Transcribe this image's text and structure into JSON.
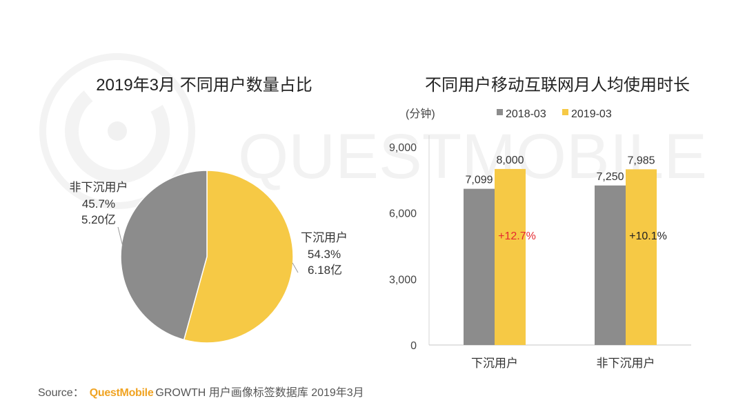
{
  "watermark": "QUESTMOBILE",
  "chart_data": [
    {
      "type": "pie",
      "title": "2019年3月 不同用户数量占比",
      "slices": [
        {
          "label": "下沉用户",
          "value": 54.3,
          "percent": "54.3%",
          "count": "6.18亿",
          "color": "#F6C945"
        },
        {
          "label": "非下沉用户",
          "value": 45.7,
          "percent": "45.7%",
          "count": "5.20亿",
          "color": "#8C8C8C"
        }
      ]
    },
    {
      "type": "bar",
      "title": "不同用户移动互联网月人均使用时长",
      "unit_label": "(分钟)",
      "categories": [
        "下沉用户",
        "非下沉用户"
      ],
      "series": [
        {
          "name": "2018-03",
          "values": [
            7099,
            7250
          ],
          "labels": [
            "7,099",
            "7,250"
          ],
          "color": "#8C8C8C"
        },
        {
          "name": "2019-03",
          "values": [
            8000,
            7985
          ],
          "labels": [
            "8,000",
            "7,985"
          ],
          "color": "#F6C945"
        }
      ],
      "annotations": [
        {
          "text": "+12.7%",
          "color": "#E5282E"
        },
        {
          "text": "+10.1%",
          "color": "#222222"
        }
      ],
      "ylim": [
        0,
        9000
      ],
      "yticks": [
        0,
        3000,
        6000,
        9000
      ],
      "ytick_labels": [
        "0",
        "3,000",
        "6,000",
        "9,000"
      ],
      "legend": "top",
      "grid": false
    }
  ],
  "footer": {
    "source_label": "Source：",
    "brand": "QuestMobile",
    "description": "GROWTH 用户画像标签数据库 2019年3月"
  }
}
